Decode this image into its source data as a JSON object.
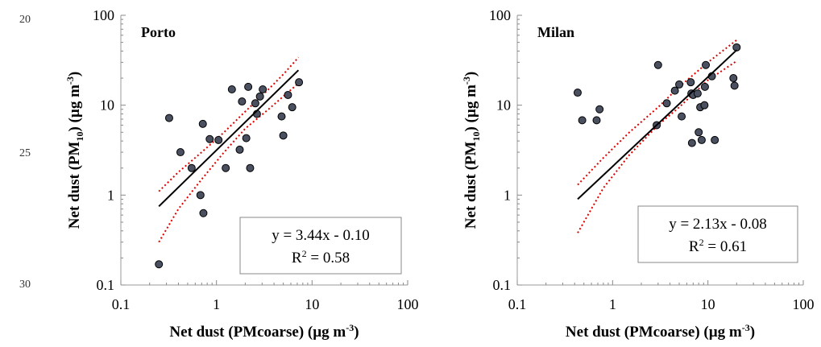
{
  "line_numbers": [
    "20",
    "25",
    "30"
  ],
  "chart_data": [
    {
      "type": "scatter",
      "title": "Porto",
      "xlabel": "Net dust (PMcoarse) (µg m",
      "xlabel_sup": "-3",
      "xlabel_end": ")",
      "ylabel_pre": "Net dust (PM",
      "ylabel_sub": "10",
      "ylabel_mid": ") (µg m",
      "ylabel_sup": "-3",
      "ylabel_end": ")",
      "x_scale": "log",
      "y_scale": "log",
      "xlim": [
        0.1,
        100
      ],
      "ylim": [
        0.1,
        100
      ],
      "x_ticks": [
        "0.1",
        "1",
        "10",
        "100"
      ],
      "y_ticks": [
        "0.1",
        "1",
        "10",
        "100"
      ],
      "equation": "y = 3.44x - 0.10",
      "r2_label": "R",
      "r2_sup": "2",
      "r2_value": " = 0.58",
      "points": [
        [
          0.25,
          0.17
        ],
        [
          0.32,
          7.2
        ],
        [
          0.42,
          3.0
        ],
        [
          0.55,
          2.0
        ],
        [
          0.68,
          1.0
        ],
        [
          0.72,
          6.2
        ],
        [
          0.73,
          0.63
        ],
        [
          0.85,
          4.2
        ],
        [
          1.05,
          4.1
        ],
        [
          1.25,
          2.0
        ],
        [
          1.45,
          15.0
        ],
        [
          1.75,
          3.2
        ],
        [
          1.85,
          11.0
        ],
        [
          2.05,
          4.3
        ],
        [
          2.15,
          16.0
        ],
        [
          2.25,
          2.0
        ],
        [
          2.55,
          10.5
        ],
        [
          2.65,
          8.0
        ],
        [
          2.85,
          12.5
        ],
        [
          3.05,
          15.0
        ],
        [
          4.8,
          7.5
        ],
        [
          5.0,
          4.6
        ],
        [
          5.6,
          13.0
        ],
        [
          6.2,
          9.5
        ],
        [
          7.3,
          18.0
        ]
      ],
      "fit_line": [
        [
          0.25,
          0.75
        ],
        [
          7.2,
          24.5
        ]
      ],
      "ci_upper": [
        [
          0.25,
          1.1
        ],
        [
          0.4,
          1.8
        ],
        [
          0.7,
          3.0
        ],
        [
          1.2,
          5.0
        ],
        [
          2.0,
          8.5
        ],
        [
          3.5,
          15.0
        ],
        [
          5.0,
          22.0
        ],
        [
          7.2,
          34.0
        ]
      ],
      "ci_lower": [
        [
          0.25,
          0.3
        ],
        [
          0.4,
          0.7
        ],
        [
          0.7,
          1.5
        ],
        [
          1.2,
          3.0
        ],
        [
          2.0,
          5.5
        ],
        [
          3.5,
          9.0
        ],
        [
          5.0,
          12.5
        ],
        [
          7.2,
          17.5
        ]
      ],
      "colors": {
        "point_fill": "#4a5060",
        "fit": "#000000",
        "ci": "#e00000"
      }
    },
    {
      "type": "scatter",
      "title": "Milan",
      "xlabel": "Net dust (PMcoarse) (µg m",
      "xlabel_sup": "-3",
      "xlabel_end": ")",
      "ylabel_pre": "Net dust (PM",
      "ylabel_sub": "10",
      "ylabel_mid": ") (µg m",
      "ylabel_sup": "-3",
      "ylabel_end": ")",
      "x_scale": "log",
      "y_scale": "log",
      "xlim": [
        0.1,
        100
      ],
      "ylim": [
        0.1,
        100
      ],
      "x_ticks": [
        "0.1",
        "1",
        "10",
        "100"
      ],
      "y_ticks": [
        "0.1",
        "1",
        "10",
        "100"
      ],
      "equation": "y = 2.13x - 0.08",
      "r2_label": "R",
      "r2_sup": "2",
      "r2_value": " = 0.61",
      "points": [
        [
          0.43,
          13.8
        ],
        [
          0.48,
          6.8
        ],
        [
          0.68,
          6.8
        ],
        [
          0.73,
          9.0
        ],
        [
          2.9,
          6.0
        ],
        [
          3.0,
          28.0
        ],
        [
          3.7,
          10.5
        ],
        [
          4.5,
          14.5
        ],
        [
          5.0,
          17.0
        ],
        [
          5.3,
          7.5
        ],
        [
          6.6,
          18.0
        ],
        [
          6.7,
          13.5
        ],
        [
          6.8,
          3.8
        ],
        [
          7.0,
          13.0
        ],
        [
          7.8,
          13.5
        ],
        [
          8.0,
          5.0
        ],
        [
          8.3,
          9.5
        ],
        [
          8.6,
          4.1
        ],
        [
          9.2,
          10.0
        ],
        [
          9.3,
          16.0
        ],
        [
          9.5,
          28.0
        ],
        [
          11.0,
          21.0
        ],
        [
          11.8,
          4.1
        ],
        [
          18.5,
          20.0
        ],
        [
          19.0,
          16.5
        ],
        [
          20.0,
          44.0
        ]
      ],
      "fit_line": [
        [
          0.43,
          0.9
        ],
        [
          20.0,
          41.0
        ]
      ],
      "ci_upper": [
        [
          0.43,
          1.3
        ],
        [
          0.8,
          2.6
        ],
        [
          1.5,
          5.0
        ],
        [
          3.0,
          9.5
        ],
        [
          5.0,
          16.0
        ],
        [
          10.0,
          30.0
        ],
        [
          20.0,
          53.0
        ]
      ],
      "ci_lower": [
        [
          0.43,
          0.38
        ],
        [
          0.8,
          1.2
        ],
        [
          1.5,
          2.8
        ],
        [
          3.0,
          6.0
        ],
        [
          5.0,
          9.5
        ],
        [
          10.0,
          19.0
        ],
        [
          20.0,
          31.0
        ]
      ],
      "colors": {
        "point_fill": "#4a5060",
        "fit": "#000000",
        "ci": "#e00000"
      }
    }
  ]
}
